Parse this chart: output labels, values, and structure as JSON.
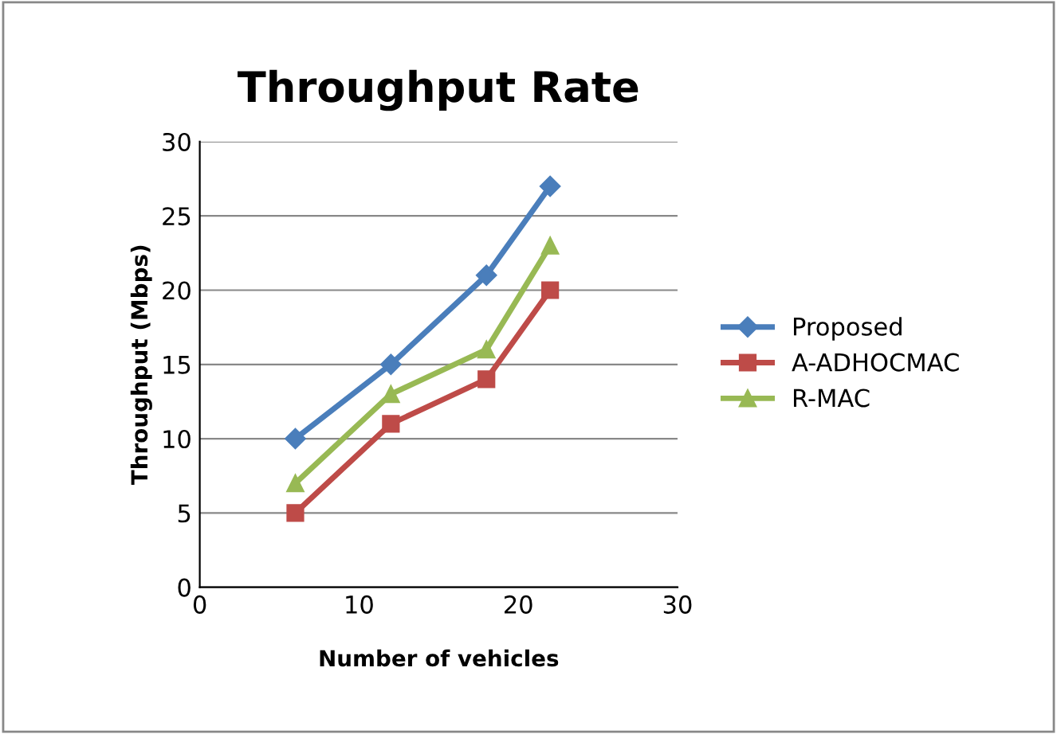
{
  "chart_data": {
    "type": "line",
    "title": "Throughput Rate",
    "xlabel": "Number of vehicles",
    "ylabel": "Throughput (Mbps)",
    "x": [
      6,
      12,
      18,
      22
    ],
    "series": [
      {
        "name": "Proposed",
        "color": "#4a7ebb",
        "marker": "diamond",
        "values": [
          10,
          15,
          21,
          27
        ]
      },
      {
        "name": "A-ADHOCMAC",
        "color": "#be4b48",
        "marker": "square",
        "values": [
          5,
          11,
          14,
          20
        ]
      },
      {
        "name": "R-MAC",
        "color": "#98b954",
        "marker": "triangle",
        "values": [
          7,
          13,
          16,
          23
        ]
      }
    ],
    "xlim": [
      0,
      30
    ],
    "xticks": [
      0,
      10,
      20,
      30
    ],
    "ylim": [
      0,
      30
    ],
    "yticks": [
      0,
      5,
      10,
      15,
      20,
      25,
      30
    ],
    "grid": "y",
    "legend": "right",
    "line_style": "solid"
  }
}
